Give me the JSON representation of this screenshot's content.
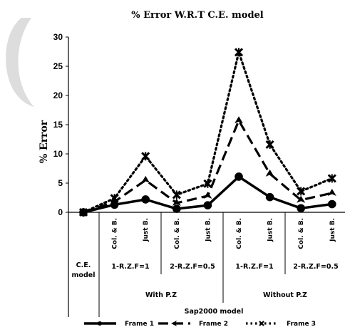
{
  "chart_data": {
    "type": "line",
    "title": "% Error W.R.T C.E. model",
    "ylabel": "% Error",
    "ylim": [
      0,
      30
    ],
    "yticks": [
      "0",
      "5",
      "10",
      "15",
      "20",
      "25",
      "30"
    ],
    "grid": false,
    "legend_position": "bottom",
    "categories": [
      "C.E. model",
      "Col. & B.",
      "Just B.",
      "Col. & B.",
      "Just B.",
      "Col. & B.",
      "Just B.",
      "Col. & B.",
      "Just B."
    ],
    "level1_groups": [
      "1-R.Z.F=1",
      "2-R.Z.F=0.5",
      "1-R.Z.F=1",
      "2-R.Z.F=0.5"
    ],
    "level2_groups": [
      "With P.Z",
      "Without P.Z"
    ],
    "level3_group": "Sap2000 model",
    "series": [
      {
        "name": "Frame 1",
        "style": "solid",
        "values": [
          0,
          1.3,
          2.2,
          0.6,
          1.2,
          6.1,
          2.6,
          0.7,
          1.4
        ]
      },
      {
        "name": "Frame 2",
        "style": "dashed",
        "values": [
          0,
          1.8,
          5.5,
          1.6,
          2.8,
          15.7,
          6.6,
          2.1,
          3.3
        ]
      },
      {
        "name": "Frame 3",
        "style": "dotted",
        "values": [
          0,
          2.4,
          9.6,
          3.0,
          4.9,
          27.4,
          11.6,
          3.6,
          5.8
        ]
      }
    ]
  }
}
